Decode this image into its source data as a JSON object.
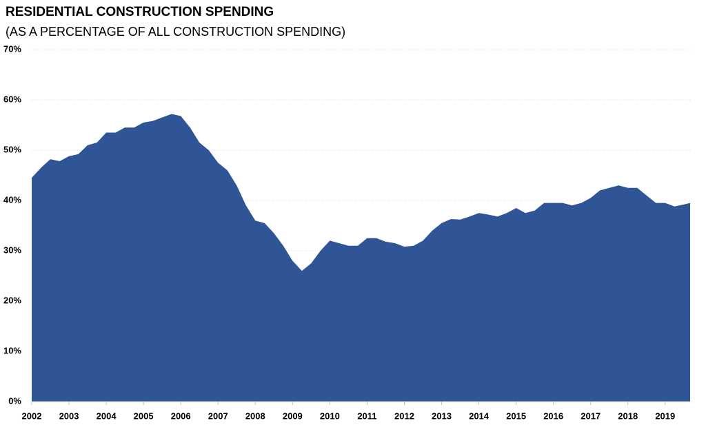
{
  "chart_data": {
    "type": "area",
    "title": "RESIDENTIAL CONSTRUCTION SPENDING",
    "subtitle": "(AS A PERCENTAGE OF ALL CONSTRUCTION SPENDING)",
    "color": "#305596",
    "x": [
      2002,
      2002.25,
      2002.5,
      2002.75,
      2003,
      2003.25,
      2003.5,
      2003.75,
      2004,
      2004.25,
      2004.5,
      2004.75,
      2005,
      2005.25,
      2005.5,
      2005.75,
      2006,
      2006.25,
      2006.5,
      2006.75,
      2007,
      2007.25,
      2007.5,
      2007.75,
      2008,
      2008.25,
      2008.5,
      2008.75,
      2009,
      2009.25,
      2009.5,
      2009.75,
      2010,
      2010.25,
      2010.5,
      2010.75,
      2011,
      2011.25,
      2011.5,
      2011.75,
      2012,
      2012.25,
      2012.5,
      2012.75,
      2013,
      2013.25,
      2013.5,
      2013.75,
      2014,
      2014.25,
      2014.5,
      2014.75,
      2015,
      2015.25,
      2015.5,
      2015.75,
      2016,
      2016.25,
      2016.5,
      2016.75,
      2017,
      2017.25,
      2017.5,
      2017.75,
      2018,
      2018.25,
      2018.5,
      2018.75,
      2019,
      2019.25,
      2019.5,
      2019.67
    ],
    "values": [
      44.5,
      46.5,
      48.2,
      47.8,
      48.8,
      49.2,
      51,
      51.5,
      53.5,
      53.5,
      54.5,
      54.5,
      55.5,
      55.8,
      56.5,
      57.2,
      56.8,
      54.5,
      51.5,
      50,
      47.5,
      46,
      43,
      39,
      36,
      35.5,
      33.5,
      31,
      28,
      26,
      27.5,
      30,
      32,
      31.5,
      31,
      31,
      32.5,
      32.5,
      31.8,
      31.5,
      30.8,
      31,
      32,
      34,
      35.5,
      36.3,
      36.2,
      36.8,
      37.5,
      37.2,
      36.8,
      37.5,
      38.5,
      37.5,
      38,
      39.5,
      39.5,
      39.5,
      39,
      39.5,
      40.5,
      42,
      42.5,
      43,
      42.5,
      42.5,
      41,
      39.5,
      39.5,
      38.8,
      39.2,
      39.5
    ],
    "xlim": [
      2002,
      2019.67
    ],
    "xticks": [
      2002,
      2003,
      2004,
      2005,
      2006,
      2007,
      2008,
      2009,
      2010,
      2011,
      2012,
      2013,
      2014,
      2015,
      2016,
      2017,
      2018,
      2019
    ],
    "ylim": [
      0,
      70
    ],
    "yticks": [
      {
        "value": 0,
        "label": "0%"
      },
      {
        "value": 10,
        "label": "10%"
      },
      {
        "value": 20,
        "label": "20%"
      },
      {
        "value": 30,
        "label": "30%"
      },
      {
        "value": 40,
        "label": "40%"
      },
      {
        "value": 50,
        "label": "50%"
      },
      {
        "value": 60,
        "label": "60%"
      },
      {
        "value": 70,
        "label": "70%"
      }
    ],
    "grid": true
  }
}
